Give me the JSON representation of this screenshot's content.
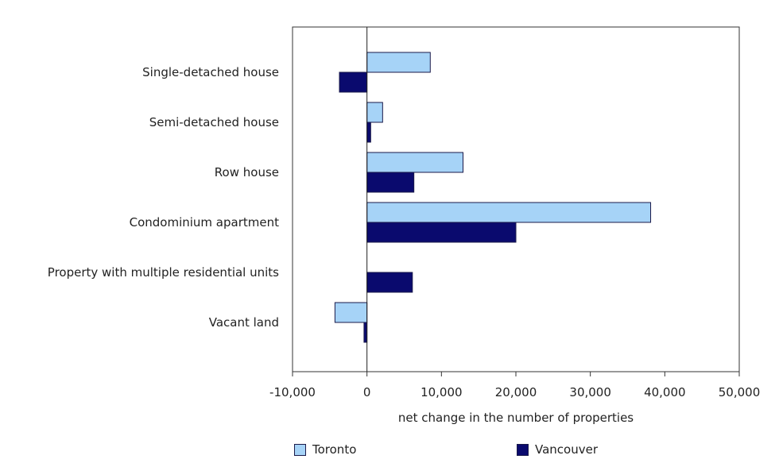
{
  "chart_data": {
    "type": "bar",
    "orientation": "horizontal",
    "categories": [
      "Single-detached house",
      "Semi-detached house",
      "Row house",
      "Condominium apartment",
      "Property with multiple residential units",
      "Vacant land"
    ],
    "series": [
      {
        "name": "Toronto",
        "color": "#a6d3f7",
        "values": [
          8500,
          2100,
          12900,
          38100,
          0,
          -4300
        ]
      },
      {
        "name": "Vancouver",
        "color": "#0a0a6e",
        "values": [
          -3700,
          500,
          6300,
          20000,
          6100,
          -400
        ]
      }
    ],
    "xlabel": "net change in the number of properties",
    "ylabel": "",
    "xlim": [
      -10000,
      50000
    ],
    "xticks": [
      -10000,
      0,
      10000,
      20000,
      30000,
      40000,
      50000
    ],
    "xtick_labels": [
      "-10,000",
      "0",
      "10,000",
      "20,000",
      "30,000",
      "40,000",
      "50,000"
    ],
    "grid": false,
    "legend_position": "bottom"
  }
}
